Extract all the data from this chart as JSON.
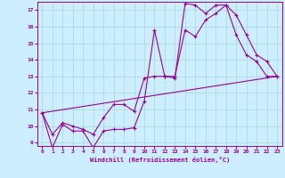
{
  "background_color": "#cceeff",
  "grid_color": "#aadddd",
  "line_color": "#990099",
  "xlabel": "Windchill (Refroidissement éolien,°C)",
  "xlim": [
    -0.5,
    23.5
  ],
  "ylim": [
    8.8,
    17.5
  ],
  "xticks": [
    0,
    1,
    2,
    3,
    4,
    5,
    6,
    7,
    8,
    9,
    10,
    11,
    12,
    13,
    14,
    15,
    16,
    17,
    18,
    19,
    20,
    21,
    22,
    23
  ],
  "yticks": [
    9,
    10,
    11,
    12,
    13,
    14,
    15,
    16,
    17
  ],
  "line1_x": [
    0,
    1,
    2,
    3,
    4,
    5,
    6,
    7,
    8,
    9,
    10,
    11,
    12,
    13,
    14,
    15,
    16,
    17,
    18,
    19,
    20,
    21,
    22,
    23
  ],
  "line1_y": [
    10.8,
    8.7,
    10.1,
    9.7,
    9.7,
    8.7,
    9.7,
    9.8,
    9.8,
    9.9,
    11.5,
    15.8,
    13.0,
    12.9,
    17.4,
    17.3,
    16.8,
    17.3,
    17.3,
    15.5,
    14.3,
    13.9,
    13.0,
    13.0
  ],
  "line2_x": [
    0,
    1,
    2,
    3,
    4,
    5,
    6,
    7,
    8,
    9,
    10,
    11,
    12,
    13,
    14,
    15,
    16,
    17,
    18,
    19,
    20,
    21,
    22,
    23
  ],
  "line2_y": [
    10.8,
    9.5,
    10.2,
    10.0,
    9.8,
    9.5,
    10.5,
    11.3,
    11.3,
    10.9,
    12.9,
    13.0,
    13.0,
    13.0,
    15.8,
    15.4,
    16.4,
    16.8,
    17.3,
    16.7,
    15.5,
    14.3,
    13.9,
    13.0
  ],
  "line3_x": [
    0,
    23
  ],
  "line3_y": [
    10.8,
    13.0
  ]
}
